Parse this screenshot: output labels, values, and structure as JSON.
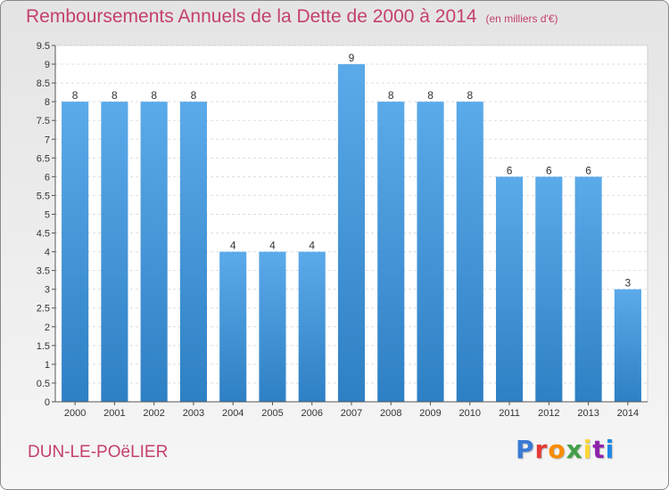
{
  "header": {
    "title": "Remboursements Annuels de la Dette de 2000 à 2014",
    "unit": "(en milliers d'€)"
  },
  "footer": {
    "commune": "DUN-LE-POëLIER",
    "brand": "Proxiti",
    "brand_colors": [
      "#3a7bd5",
      "#e53935",
      "#fb8c00",
      "#43a047",
      "#fdd835",
      "#8e24aa",
      "#1e88e5"
    ]
  },
  "chart_data": {
    "type": "bar",
    "title": "Remboursements Annuels de la Dette de 2000 à 2014",
    "ylabel": "(en milliers d'€)",
    "categories": [
      "2000",
      "2001",
      "2002",
      "2003",
      "2004",
      "2005",
      "2006",
      "2007",
      "2008",
      "2009",
      "2010",
      "2011",
      "2012",
      "2013",
      "2014"
    ],
    "values": [
      8,
      8,
      8,
      8,
      4,
      4,
      4,
      9,
      8,
      8,
      8,
      6,
      6,
      6,
      3
    ],
    "data_labels": [
      "8",
      "8",
      "8",
      "8",
      "4",
      "4",
      "4",
      "9",
      "8",
      "8",
      "8",
      "6",
      "6",
      "6",
      "3"
    ],
    "yticks": [
      "0",
      "0.5",
      "1",
      "1.5",
      "2",
      "2.5",
      "3",
      "3.5",
      "4",
      "4.5",
      "5",
      "5.5",
      "6",
      "6.5",
      "7",
      "7.5",
      "8",
      "8.5",
      "9",
      "9.5"
    ],
    "ylim": [
      0,
      9.5
    ],
    "grid": true,
    "bar_color_top": "#5baaea",
    "bar_color_bottom": "#2e80c4"
  }
}
